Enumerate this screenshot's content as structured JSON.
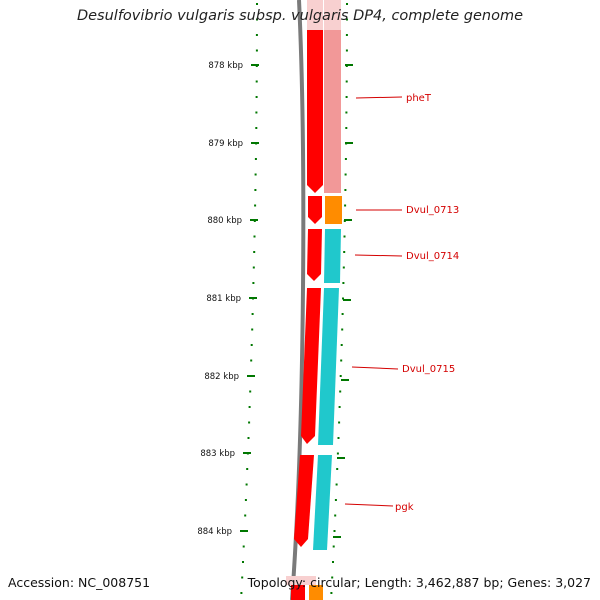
{
  "title": "Desulfovibrio vulgaris subsp. vulgaris DP4, complete genome",
  "accession": "Accession: NC_008751",
  "summary": "Topology: circular; Length: 3,462,887 bp; Genes: 3,027",
  "scale_unit": "kbp",
  "scale_ticks": [
    "878 kbp",
    "879 kbp",
    "880 kbp",
    "881 kbp",
    "882 kbp",
    "883 kbp",
    "884 kbp"
  ],
  "genes": [
    {
      "name": "pheT",
      "strand": "-",
      "color": "#ff0000",
      "cog_color": "#f29898"
    },
    {
      "name": "Dvul_0713",
      "strand": "-",
      "color": "#ff0000",
      "cog_color": "#ff8c00"
    },
    {
      "name": "Dvul_0714",
      "strand": "-",
      "color": "#ff0000",
      "cog_color": "#20c8cc"
    },
    {
      "name": "Dvul_0715",
      "strand": "-",
      "color": "#ff0000",
      "cog_color": "#20c8cc"
    },
    {
      "name": "pgk",
      "strand": "-",
      "color": "#ff0000",
      "cog_color": "#20c8cc"
    }
  ],
  "colors": {
    "backbone": "#808080",
    "ticks": "#007700",
    "label": "#d40000"
  }
}
